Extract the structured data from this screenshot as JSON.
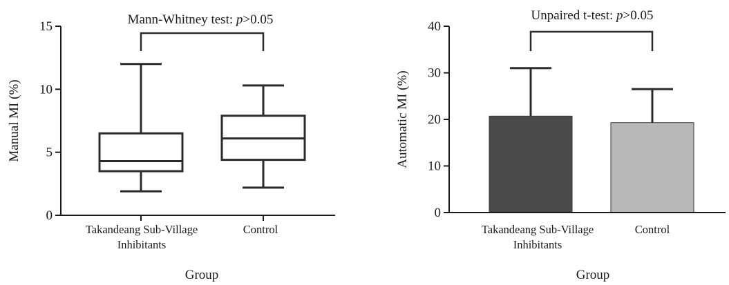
{
  "chart_data": [
    {
      "type": "box",
      "title": "Mann-Whitney test: p>0.05",
      "title_prefix": "Mann-Whitney test: ",
      "title_p": "p",
      "title_suffix": ">0.05",
      "xlabel": "Group",
      "ylabel": "Manual MI (%)",
      "ylim": [
        0,
        15
      ],
      "yticks": [
        0,
        5,
        10,
        15
      ],
      "categories": [
        [
          "Takandeang Sub-Village",
          "Inhibitants"
        ],
        [
          "Control"
        ]
      ],
      "boxes": [
        {
          "whisker_low": 1.9,
          "q1": 3.5,
          "median": 4.3,
          "q3": 6.5,
          "whisker_high": 12.0
        },
        {
          "whisker_low": 2.2,
          "q1": 4.4,
          "median": 6.1,
          "q3": 7.9,
          "whisker_high": 10.3
        }
      ],
      "grid": false
    },
    {
      "type": "bar",
      "title": "Unpaired t-test: p>0.05",
      "title_prefix": "Unpaired t-test: ",
      "title_p": "p",
      "title_suffix": ">0.05",
      "xlabel": "Group",
      "ylabel": "Automatic MI (%)",
      "ylim": [
        0,
        40
      ],
      "yticks": [
        0,
        10,
        20,
        30,
        40
      ],
      "categories": [
        [
          "Takandeang Sub-Village",
          "Inhibitants"
        ],
        [
          "Control"
        ]
      ],
      "values": [
        20.7,
        19.3
      ],
      "error_upper": [
        31.0,
        26.5
      ],
      "colors": [
        "#4a4a4a",
        "#b8b8b8"
      ],
      "grid": false
    }
  ]
}
